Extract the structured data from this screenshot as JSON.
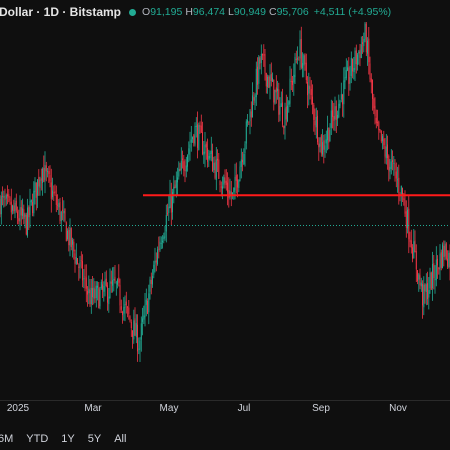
{
  "header": {
    "title": "Dollar · 1D · Bitstamp",
    "open_label": "O",
    "open": "91,195",
    "high_label": "H",
    "high": "96,474",
    "low_label": "L",
    "low": "90,949",
    "close_label": "C",
    "close": "95,706",
    "change": "+4,511 (+4.95%)"
  },
  "colors": {
    "background": "#0f0f0f",
    "up": "#22ab94",
    "down": "#f23645",
    "level_line": "#ff1a1a",
    "price_line": "#22ab94"
  },
  "time_axis": [
    "2025",
    "Mar",
    "May",
    "Jul",
    "Sep",
    "Nov"
  ],
  "range_buttons": [
    "6M",
    "YTD",
    "1Y",
    "5Y",
    "All"
  ],
  "chart_data": {
    "type": "candlestick",
    "title": "Dollar · 1D · Bitstamp",
    "x_labels": [
      "2025",
      "Mar",
      "May",
      "Jul",
      "Sep",
      "Nov"
    ],
    "ylim": [
      68000,
      128000
    ],
    "y_axis_visible": false,
    "grid": false,
    "horizontal_level": 100500,
    "last_price": 95706,
    "trend_points": [
      {
        "month": "2024-12-15",
        "price": 100000
      },
      {
        "month": "2025-01-08",
        "price": 96000
      },
      {
        "month": "2025-01-20",
        "price": 105000
      },
      {
        "month": "2025-02-05",
        "price": 97000
      },
      {
        "month": "2025-02-28",
        "price": 84000
      },
      {
        "month": "2025-03-20",
        "price": 86000
      },
      {
        "month": "2025-04-08",
        "price": 77000
      },
      {
        "month": "2025-04-25",
        "price": 94000
      },
      {
        "month": "2025-05-22",
        "price": 111000
      },
      {
        "month": "2025-06-22",
        "price": 100000
      },
      {
        "month": "2025-07-14",
        "price": 122000
      },
      {
        "month": "2025-08-02",
        "price": 113000
      },
      {
        "month": "2025-08-14",
        "price": 124000
      },
      {
        "month": "2025-09-01",
        "price": 108000
      },
      {
        "month": "2025-09-18",
        "price": 117000
      },
      {
        "month": "2025-10-06",
        "price": 126000
      },
      {
        "month": "2025-10-14",
        "price": 111000
      },
      {
        "month": "2025-11-04",
        "price": 101000
      },
      {
        "month": "2025-11-21",
        "price": 84000
      },
      {
        "month": "2025-12-08",
        "price": 92000
      },
      {
        "month": "2025-12-20",
        "price": 88000
      },
      {
        "month": "2026-01-05",
        "price": 95706
      }
    ]
  }
}
